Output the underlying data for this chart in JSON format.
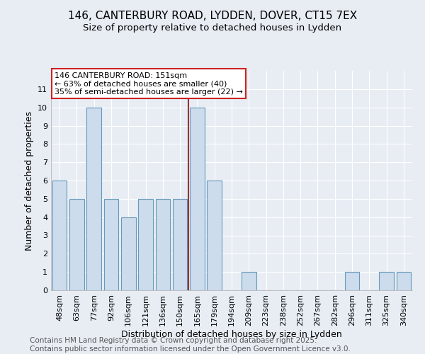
{
  "title1": "146, CANTERBURY ROAD, LYDDEN, DOVER, CT15 7EX",
  "title2": "Size of property relative to detached houses in Lydden",
  "xlabel": "Distribution of detached houses by size in Lydden",
  "ylabel": "Number of detached properties",
  "categories": [
    "48sqm",
    "63sqm",
    "77sqm",
    "92sqm",
    "106sqm",
    "121sqm",
    "136sqm",
    "150sqm",
    "165sqm",
    "179sqm",
    "194sqm",
    "209sqm",
    "223sqm",
    "238sqm",
    "252sqm",
    "267sqm",
    "282sqm",
    "296sqm",
    "311sqm",
    "325sqm",
    "340sqm"
  ],
  "values": [
    6,
    5,
    10,
    5,
    4,
    5,
    5,
    5,
    10,
    6,
    0,
    1,
    0,
    0,
    0,
    0,
    0,
    1,
    0,
    1,
    1
  ],
  "bar_color": "#ccdcec",
  "bar_edge_color": "#6699bb",
  "background_color": "#e8edf4",
  "grid_color": "#ffffff",
  "vline_x": 7.5,
  "vline_color": "#993333",
  "annotation_text": "146 CANTERBURY ROAD: 151sqm\n← 63% of detached houses are smaller (40)\n35% of semi-detached houses are larger (22) →",
  "annotation_box_color": "#ffffff",
  "annotation_box_edge_color": "#cc2222",
  "footer_text": "Contains HM Land Registry data © Crown copyright and database right 2025.\nContains public sector information licensed under the Open Government Licence v3.0.",
  "ylim": [
    0,
    12
  ],
  "yticks": [
    0,
    1,
    2,
    3,
    4,
    5,
    6,
    7,
    8,
    9,
    10,
    11,
    12
  ],
  "title1_fontsize": 11,
  "title2_fontsize": 9.5,
  "xlabel_fontsize": 9,
  "ylabel_fontsize": 9,
  "tick_fontsize": 8,
  "annot_fontsize": 8,
  "footer_fontsize": 7.5
}
